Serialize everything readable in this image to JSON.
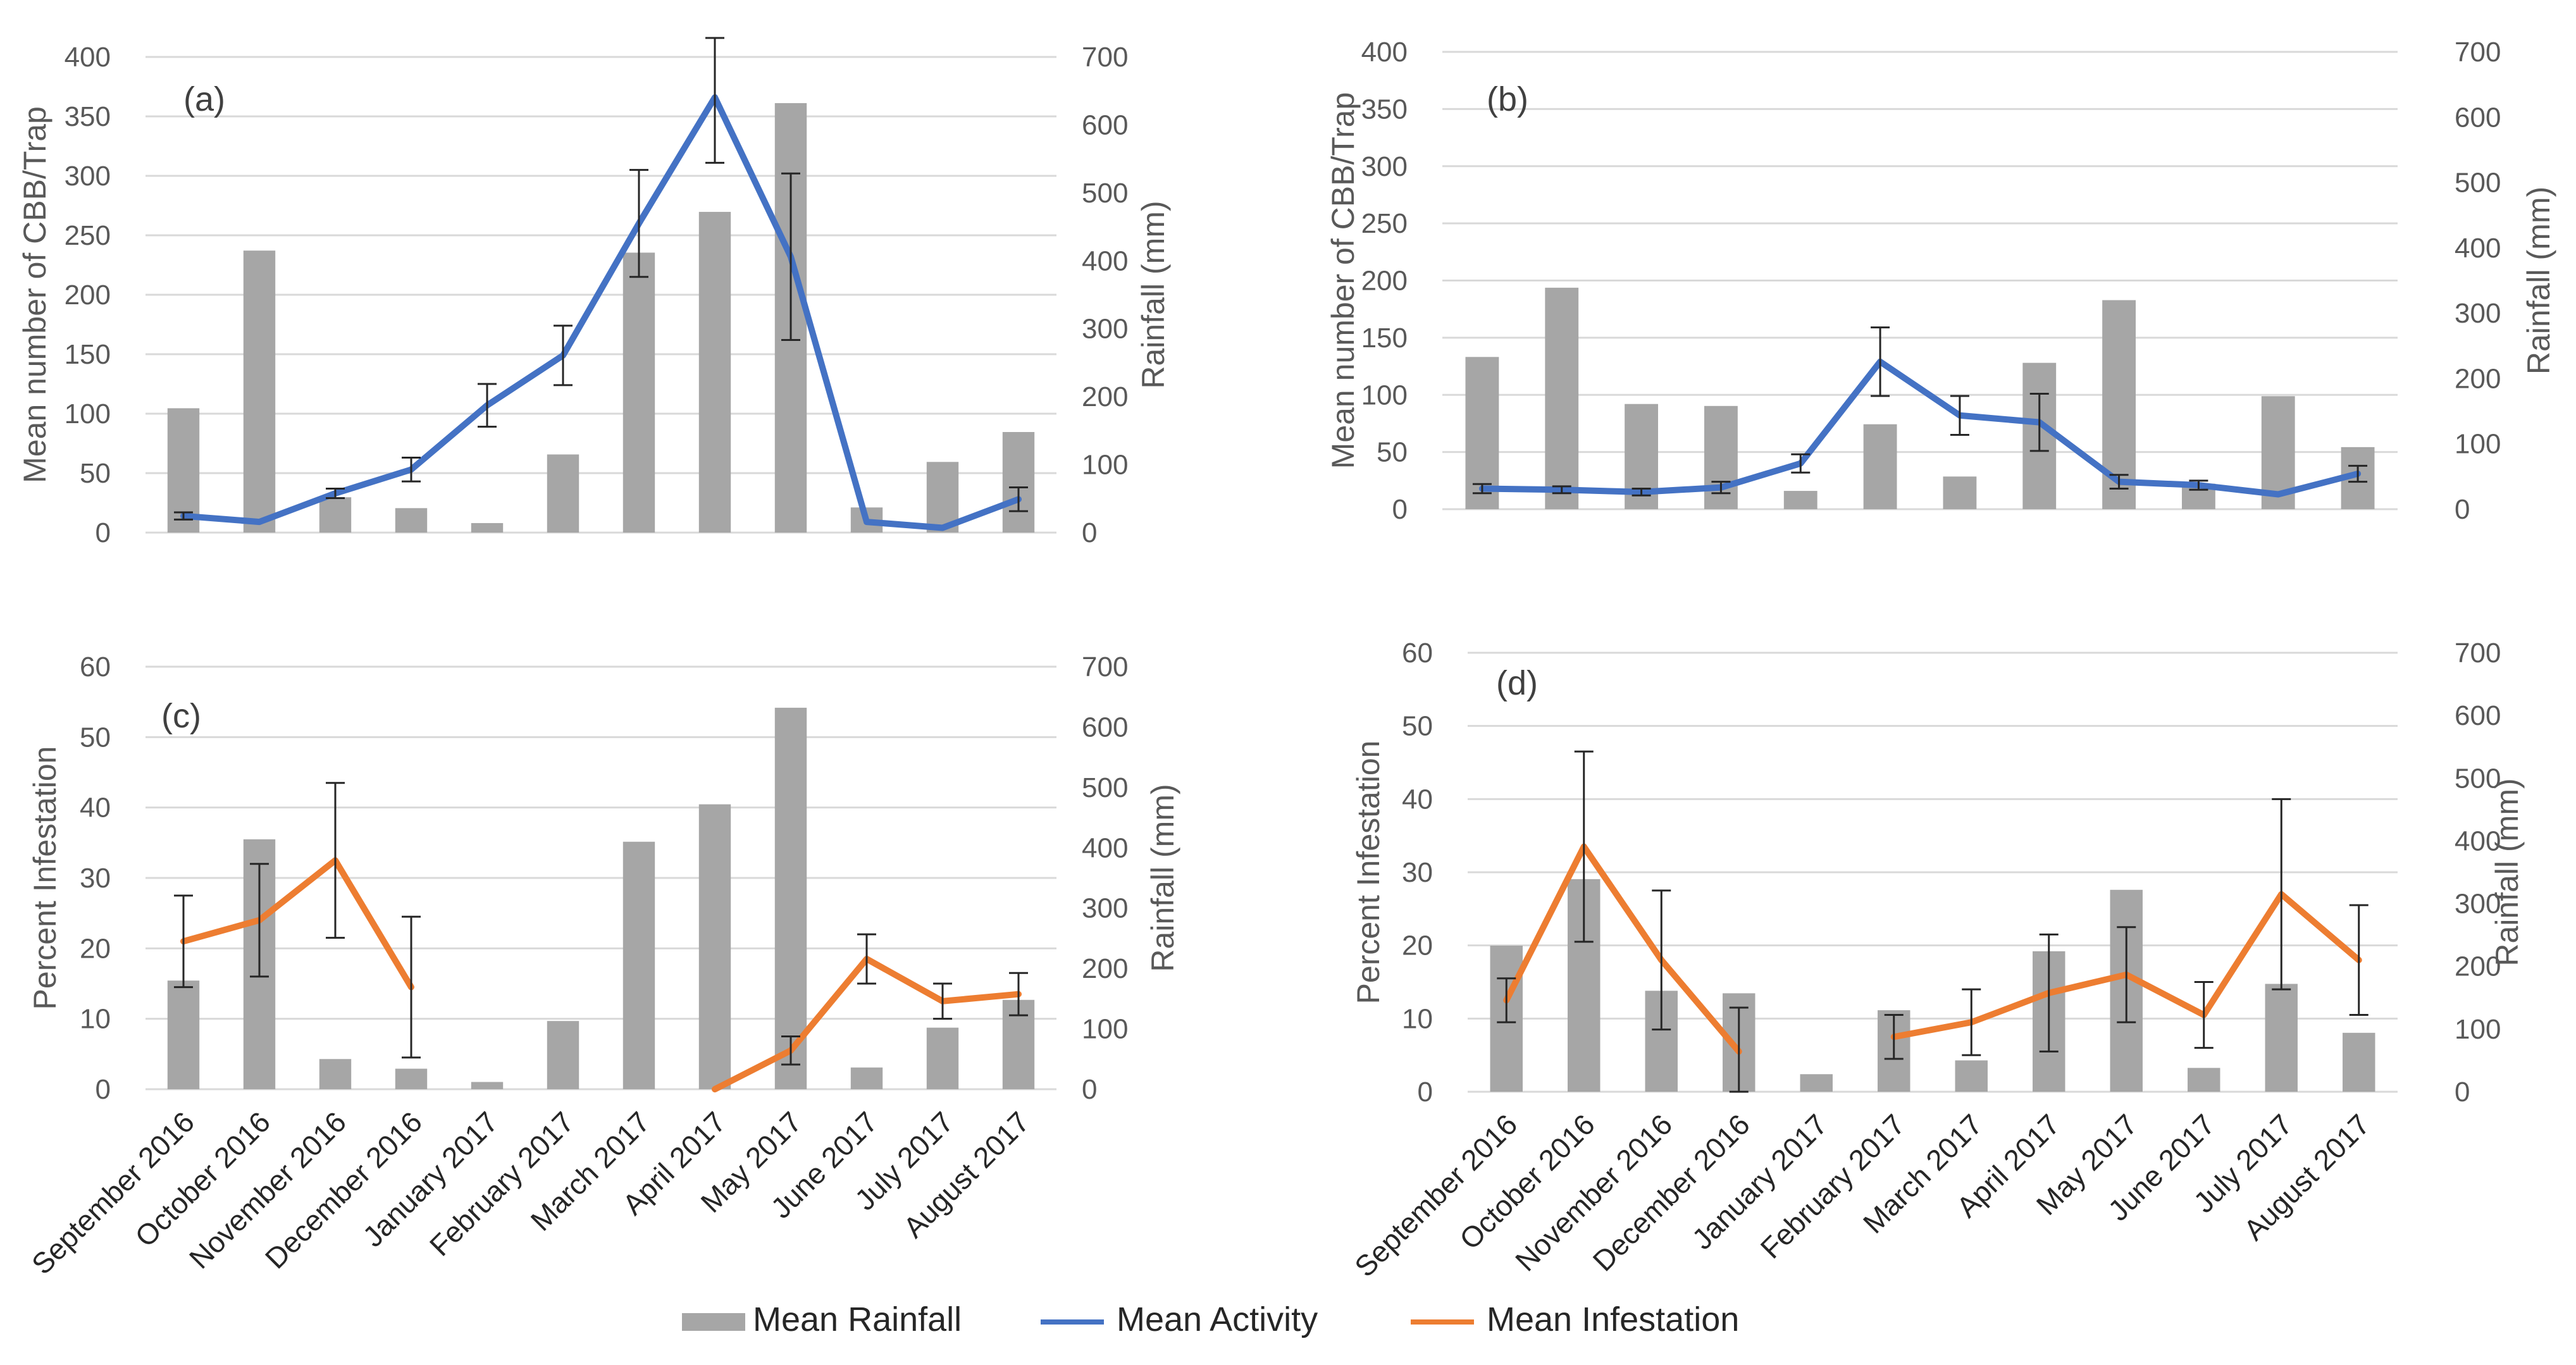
{
  "chart_data": [
    {
      "panel": "(a)",
      "type": "bar+line",
      "categories": [
        "September 2016",
        "October 2016",
        "November 2016",
        "December 2016",
        "January 2017",
        "February 2017",
        "March 2017",
        "April 2017",
        "May 2017",
        "June 2017",
        "July 2017",
        "August 2017"
      ],
      "ylabel_left": "Mean number of CBB/Trap",
      "ylabel_right": "Rainfall (mm)",
      "ylim_left": [
        0,
        400
      ],
      "yticks_left": [
        0,
        50,
        100,
        150,
        200,
        250,
        300,
        350,
        400
      ],
      "ylim_right": [
        0,
        700
      ],
      "yticks_right": [
        0,
        100,
        200,
        300,
        400,
        500,
        600,
        700
      ],
      "series": [
        {
          "name": "Mean Rainfall",
          "axis": "right",
          "kind": "bar",
          "color": "#a6a6a6",
          "values": [
            183,
            415,
            52,
            36,
            14,
            115,
            412,
            472,
            632,
            37,
            104,
            148
          ]
        },
        {
          "name": "Mean Activity",
          "axis": "left",
          "kind": "line",
          "color": "#4472c4",
          "values": [
            14,
            9,
            33,
            53,
            107,
            149,
            260,
            366,
            232,
            9,
            4,
            28
          ],
          "errors": [
            3,
            0,
            4,
            10,
            18,
            25,
            45,
            55,
            70,
            0,
            0,
            10
          ]
        }
      ]
    },
    {
      "panel": "(b)",
      "type": "bar+line",
      "categories": [
        "September 2016",
        "October 2016",
        "November 2016",
        "December 2016",
        "January 2017",
        "February 2017",
        "March 2017",
        "April 2017",
        "May 2017",
        "June 2017",
        "July 2017",
        "August 2017"
      ],
      "ylabel_left": "Mean number of CBB/Trap",
      "ylabel_right": "Rainfall (mm)",
      "ylim_left": [
        0,
        400
      ],
      "yticks_left": [
        0,
        50,
        100,
        150,
        200,
        250,
        300,
        350,
        400
      ],
      "ylim_right": [
        0,
        700
      ],
      "yticks_right": [
        0,
        100,
        200,
        300,
        400,
        500,
        600,
        700
      ],
      "series": [
        {
          "name": "Mean Rainfall",
          "axis": "right",
          "kind": "bar",
          "color": "#a6a6a6",
          "values": [
            233,
            339,
            161,
            158,
            28,
            130,
            50,
            224,
            320,
            39,
            173,
            95
          ]
        },
        {
          "name": "Mean Activity",
          "axis": "left",
          "kind": "line",
          "color": "#4472c4",
          "values": [
            18,
            17,
            15,
            19,
            40,
            129,
            82,
            76,
            24,
            21,
            13,
            31
          ],
          "errors": [
            4,
            3,
            3,
            5,
            8,
            30,
            17,
            25,
            6,
            4,
            0,
            7
          ]
        }
      ]
    },
    {
      "panel": "(c)",
      "type": "bar+line",
      "categories": [
        "September 2016",
        "October 2016",
        "November 2016",
        "December 2016",
        "January 2017",
        "February 2017",
        "March 2017",
        "April 2017",
        "May 2017",
        "June 2017",
        "July 2017",
        "August 2017"
      ],
      "ylabel_left": "Percent Infestation",
      "ylabel_right": "Rainfall (mm)",
      "ylim_left": [
        0,
        60
      ],
      "yticks_left": [
        0,
        10,
        20,
        30,
        40,
        50,
        60
      ],
      "ylim_right": [
        0,
        700
      ],
      "yticks_right": [
        0,
        100,
        200,
        300,
        400,
        500,
        600,
        700
      ],
      "series": [
        {
          "name": "Mean Rainfall",
          "axis": "right",
          "kind": "bar",
          "color": "#a6a6a6",
          "values": [
            180,
            414,
            50,
            34,
            12,
            113,
            410,
            472,
            632,
            36,
            102,
            148
          ]
        },
        {
          "name": "Mean Infestation",
          "axis": "left",
          "kind": "line",
          "color": "#ed7d31",
          "values": [
            21,
            24,
            32.5,
            14.5,
            null,
            null,
            null,
            0,
            5.5,
            18.5,
            12.5,
            13.5
          ],
          "errors": [
            6.5,
            8,
            11,
            10,
            null,
            null,
            null,
            0,
            2,
            3.5,
            2.5,
            3
          ]
        }
      ]
    },
    {
      "panel": "(d)",
      "type": "bar+line",
      "categories": [
        "September 2016",
        "October 2016",
        "November 2016",
        "December 2016",
        "January 2017",
        "February 2017",
        "March 2017",
        "April 2017",
        "May 2017",
        "June 2017",
        "July 2017",
        "August 2017"
      ],
      "ylabel_left": "Percent Infestation",
      "ylabel_right": "Rainfall (mm)",
      "ylim_left": [
        0,
        60
      ],
      "yticks_left": [
        0,
        10,
        20,
        30,
        40,
        50,
        60
      ],
      "ylim_right": [
        0,
        700
      ],
      "yticks_right": [
        0,
        100,
        200,
        300,
        400,
        500,
        600,
        700
      ],
      "series": [
        {
          "name": "Mean Rainfall",
          "axis": "right",
          "kind": "bar",
          "color": "#a6a6a6",
          "values": [
            233,
            339,
            161,
            157,
            28,
            130,
            50,
            224,
            322,
            38,
            172,
            94
          ]
        },
        {
          "name": "Mean Infestation",
          "axis": "left",
          "kind": "line",
          "color": "#ed7d31",
          "values": [
            12.5,
            33.5,
            18,
            5.5,
            null,
            7.5,
            9.5,
            13.5,
            16,
            10.5,
            27,
            18
          ],
          "errors": [
            3,
            13,
            9.5,
            6,
            null,
            3,
            4.5,
            8,
            6.5,
            4.5,
            13,
            7.5
          ]
        }
      ]
    }
  ],
  "legend": {
    "rainfall": "Mean Rainfall",
    "activity": "Mean Activity",
    "infestation": "Mean Infestation"
  }
}
